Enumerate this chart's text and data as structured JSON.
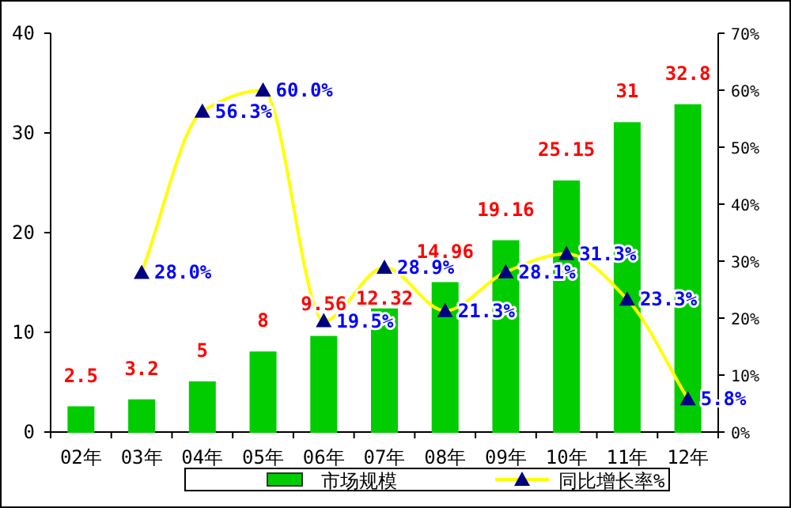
{
  "chart_data": {
    "type": "bar",
    "categories": [
      "02年",
      "03年",
      "04年",
      "05年",
      "06年",
      "07年",
      "08年",
      "09年",
      "10年",
      "11年",
      "12年"
    ],
    "series": [
      {
        "name": "市场规模",
        "color": "#00cc00",
        "values": [
          2.5,
          3.2,
          5,
          8,
          9.56,
          12.32,
          14.96,
          19.16,
          25.15,
          31,
          32.8
        ],
        "value_labels": [
          "2.5",
          "3.2",
          "5",
          "8",
          "9.56",
          "12.32",
          "14.96",
          "19.16",
          "25.15",
          "31",
          "32.8"
        ]
      },
      {
        "name": "同比增长率%",
        "type": "line",
        "axis": "y2",
        "color": "#ffff00",
        "values": [
          null,
          28.0,
          56.3,
          60.0,
          19.5,
          28.9,
          21.3,
          28.1,
          31.3,
          23.3,
          5.8
        ],
        "value_labels": [
          null,
          "28.0%",
          "56.3%",
          "60.0%",
          "19.5%",
          "28.9%",
          "21.3%",
          "28.1%",
          "31.3%",
          "23.3%",
          "5.8%"
        ]
      }
    ],
    "ylim": [
      0,
      40
    ],
    "yticks": [
      0,
      10,
      20,
      30,
      40
    ],
    "y2lim": [
      0,
      70
    ],
    "y2ticks": [
      {
        "value": 0,
        "label": "0%"
      },
      {
        "value": 10,
        "label": "10%"
      },
      {
        "value": 20,
        "label": "20%"
      },
      {
        "value": 30,
        "label": "30%"
      },
      {
        "value": 40,
        "label": "40%"
      },
      {
        "value": 50,
        "label": "50%"
      },
      {
        "value": 60,
        "label": "60%"
      },
      {
        "value": 70,
        "label": "70%"
      }
    ],
    "legend": "bottom",
    "marker": "triangle",
    "grid": false
  }
}
